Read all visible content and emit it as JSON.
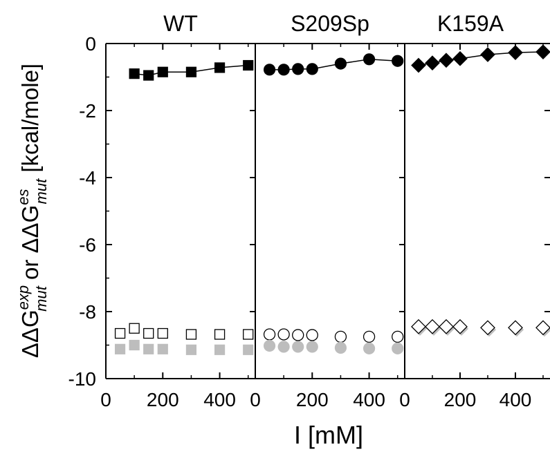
{
  "chart_data": {
    "type": "scatter",
    "xlabel": "I [mM]",
    "ylabel": {
      "part1": "ΔΔG",
      "sup1": "exp",
      "sub1": "mut",
      "conj": " or ",
      "part2": "ΔΔG",
      "sup2": "es",
      "sub2": "mut",
      "unit": " [kcal/mole]"
    },
    "ylim": [
      -10,
      0
    ],
    "yticks": [
      "0",
      "-2",
      "-4",
      "-6",
      "-8",
      "-10"
    ],
    "ytick_values": [
      0,
      -2,
      -4,
      -6,
      -8,
      -10
    ],
    "xlim": [
      0,
      525
    ],
    "xticks": [
      "0",
      "200",
      "400"
    ],
    "xtick_values": [
      0,
      200,
      400
    ],
    "grid": false,
    "panels": [
      {
        "title": "WT",
        "marker": "square",
        "series": [
          {
            "style": "filled-black-line",
            "x": [
              100,
              150,
              200,
              300,
              400,
              500
            ],
            "y": [
              -0.9,
              -0.95,
              -0.85,
              -0.85,
              -0.72,
              -0.65
            ]
          },
          {
            "style": "open",
            "x": [
              50,
              100,
              150,
              200,
              300,
              400,
              500
            ],
            "y": [
              -8.65,
              -8.5,
              -8.65,
              -8.65,
              -8.68,
              -8.68,
              -8.68
            ]
          },
          {
            "style": "filled-gray",
            "x": [
              50,
              100,
              150,
              200,
              300,
              400,
              500
            ],
            "y": [
              -9.12,
              -9.0,
              -9.12,
              -9.12,
              -9.14,
              -9.14,
              -9.14
            ]
          }
        ]
      },
      {
        "title": "S209Sp",
        "marker": "circle",
        "series": [
          {
            "style": "filled-black-line",
            "x": [
              50,
              100,
              150,
              200,
              300,
              400,
              500
            ],
            "y": [
              -0.78,
              -0.78,
              -0.76,
              -0.76,
              -0.6,
              -0.47,
              -0.52
            ]
          },
          {
            "style": "open",
            "x": [
              50,
              100,
              150,
              200,
              300,
              400,
              500
            ],
            "y": [
              -8.68,
              -8.68,
              -8.7,
              -8.7,
              -8.75,
              -8.75,
              -8.75
            ]
          },
          {
            "style": "filled-gray",
            "x": [
              50,
              100,
              150,
              200,
              300,
              400,
              500
            ],
            "y": [
              -9.02,
              -9.05,
              -9.05,
              -9.05,
              -9.08,
              -9.1,
              -9.1
            ]
          }
        ]
      },
      {
        "title": "K159A",
        "marker": "diamond",
        "series": [
          {
            "style": "filled-black-line",
            "x": [
              50,
              100,
              150,
              200,
              300,
              400,
              500
            ],
            "y": [
              -0.65,
              -0.58,
              -0.5,
              -0.45,
              -0.33,
              -0.27,
              -0.25
            ]
          },
          {
            "style": "open-shadow",
            "x": [
              50,
              100,
              150,
              200,
              300,
              400,
              500
            ],
            "y": [
              -8.45,
              -8.45,
              -8.45,
              -8.45,
              -8.48,
              -8.48,
              -8.48
            ]
          }
        ]
      }
    ]
  }
}
